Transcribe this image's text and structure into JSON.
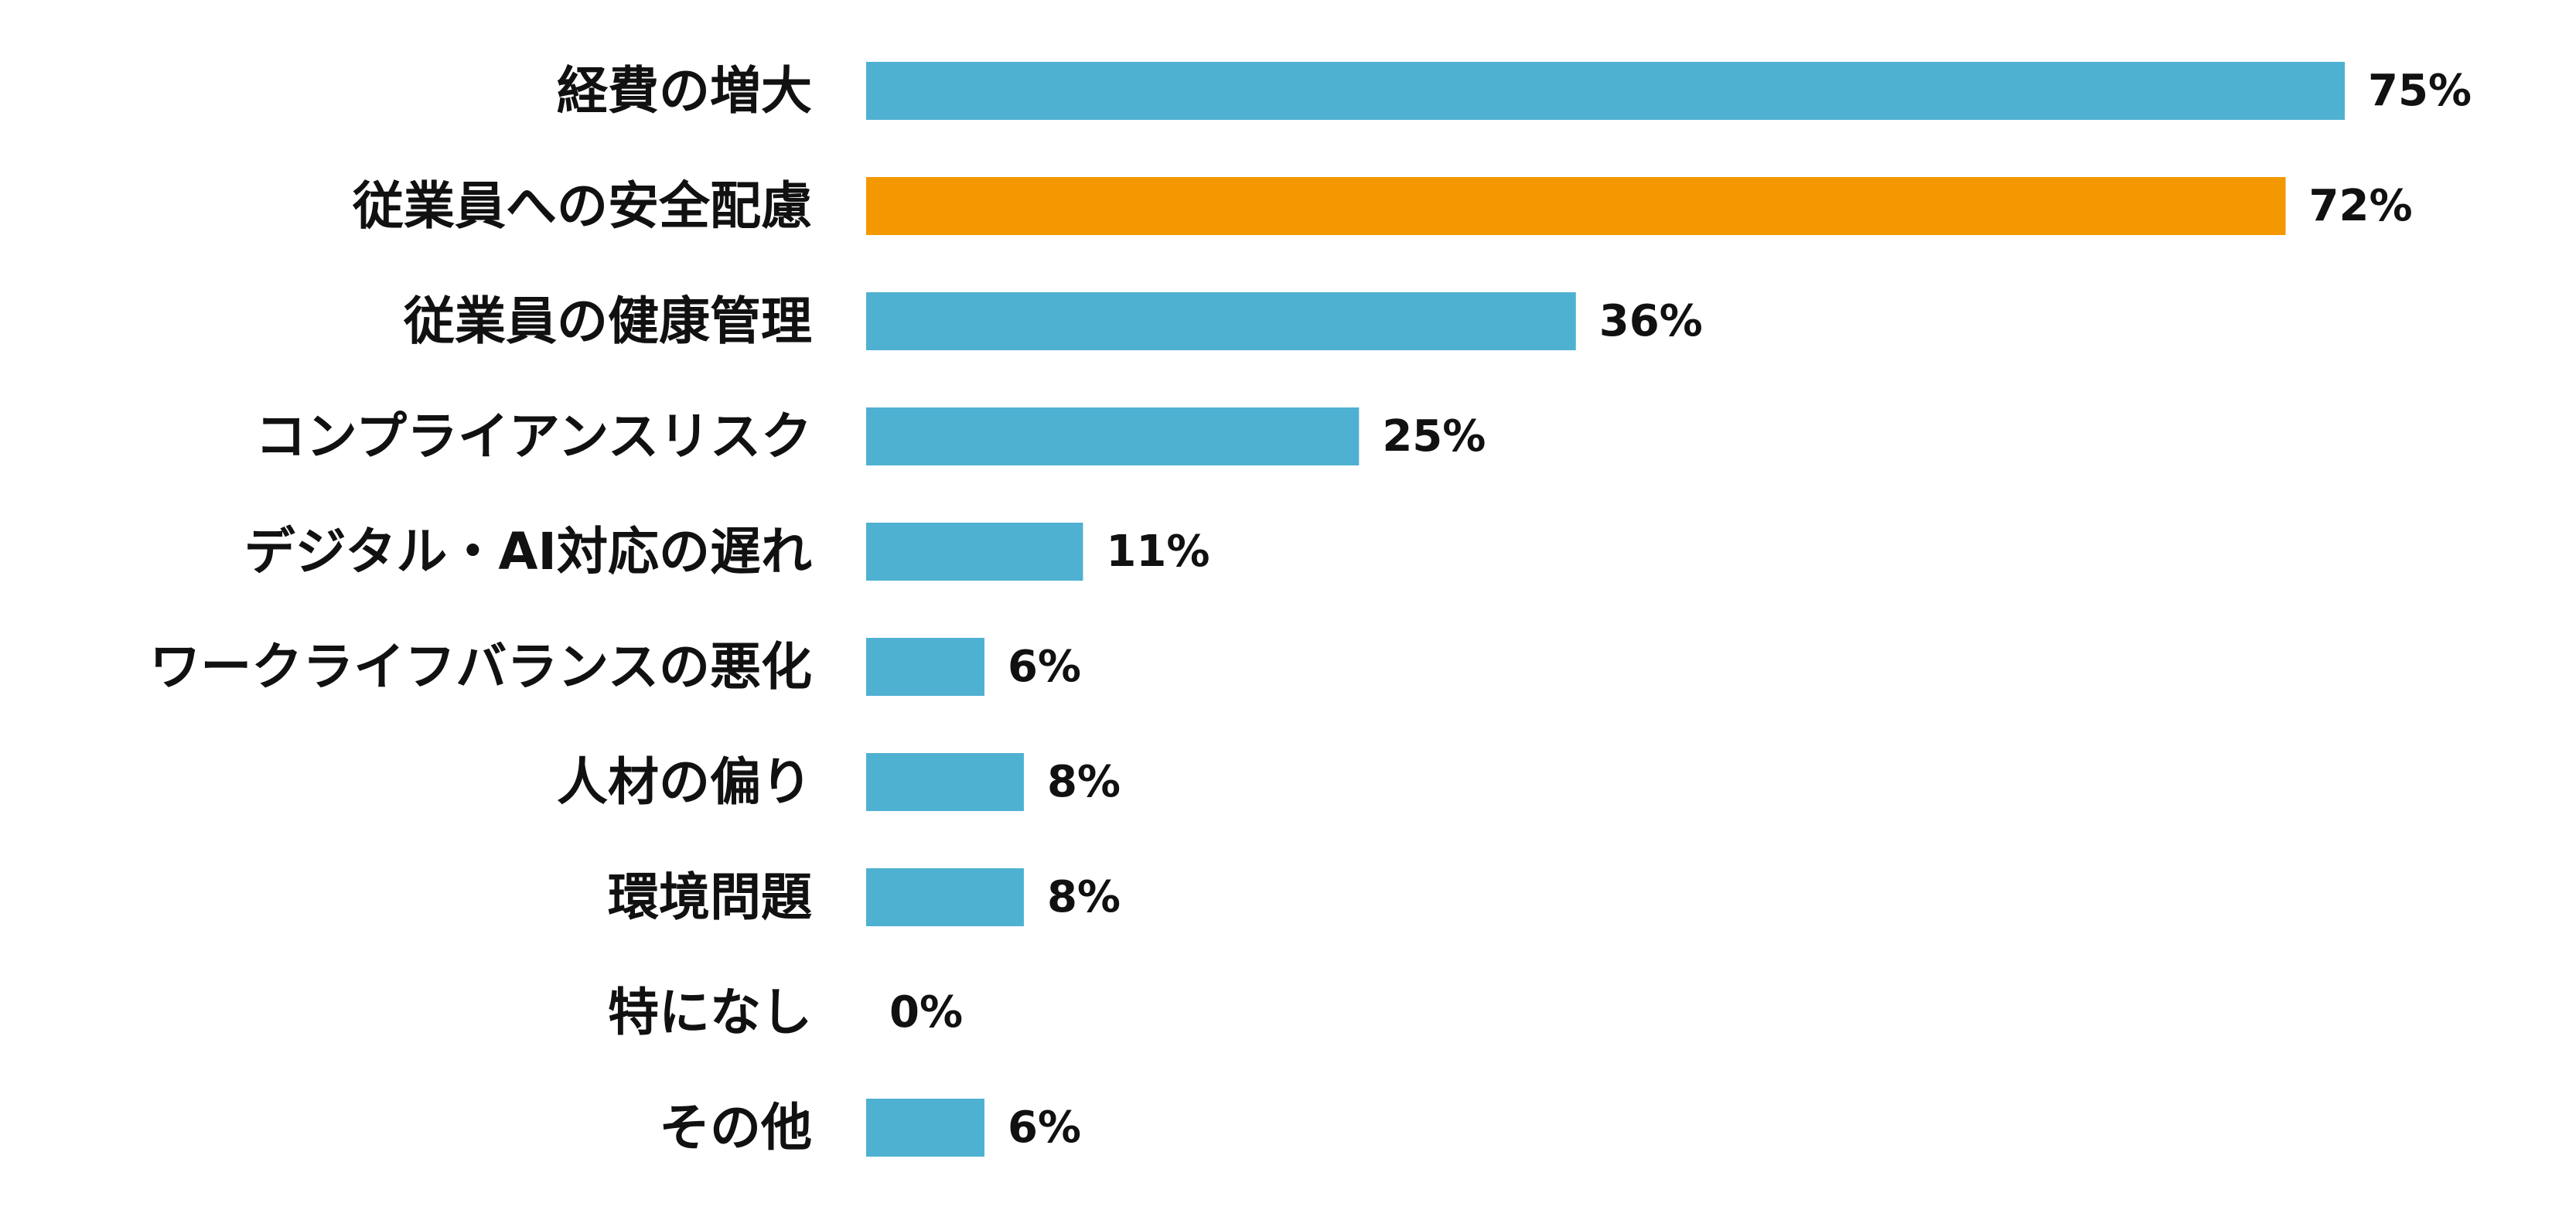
{
  "chart_data": {
    "type": "bar",
    "orientation": "horizontal",
    "categories": [
      "経費の増大",
      "従業員への安全配慮",
      "従業員の健康管理",
      "コンプライアンスリスク",
      "デジタル・AI対応の遅れ",
      "ワークライフバランスの悪化",
      "人材の偏り",
      "環境問題",
      "特になし",
      "その他"
    ],
    "values": [
      75,
      72,
      36,
      25,
      11,
      6,
      8,
      8,
      0,
      6
    ],
    "value_labels": [
      "75%",
      "72%",
      "36%",
      "25%",
      "11%",
      "6%",
      "8%",
      "8%",
      "0%",
      "6%"
    ],
    "unit": "%",
    "title": "",
    "xlabel": "",
    "ylabel": "",
    "xlim": [
      0,
      75
    ],
    "grid": false,
    "legend": "none",
    "highlight_index": 1,
    "colors": {
      "default": "#4EB1D1",
      "highlight": "#F39800"
    }
  }
}
